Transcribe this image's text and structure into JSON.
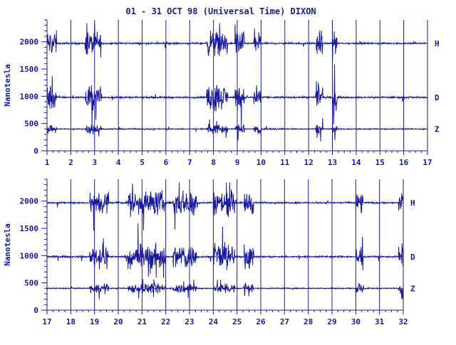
{
  "title": "01 - 31 OCT 98 (Universal Time) DIXON",
  "colors": {
    "ink": "#1a1aa0",
    "background": "#ffffff"
  },
  "chart_data": [
    {
      "type": "line",
      "ylabel": "Nanotesla",
      "x": {
        "range": [
          1,
          17
        ],
        "tick_labels": [
          "1",
          "2",
          "3",
          "4",
          "5",
          "6",
          "7",
          "8",
          "9",
          "10",
          "11",
          "12",
          "13",
          "14",
          "15",
          "16",
          "17"
        ]
      },
      "ylim": [
        0,
        2400
      ],
      "y_tick_labels": [
        "0",
        "500",
        "1000",
        "1500",
        "2000"
      ],
      "vertical_day_lines": true,
      "series": [
        {
          "name": "H",
          "baseline": 1970,
          "disturbed_days": [
            [
              1,
              1.4
            ],
            [
              2.6,
              3.3
            ],
            [
              7.7,
              8.6
            ],
            [
              8.9,
              9.3
            ],
            [
              9.7,
              10.0
            ],
            [
              12.3,
              12.6
            ],
            [
              13.0,
              13.2
            ]
          ]
        },
        {
          "name": "D",
          "baseline": 980,
          "disturbed_days": [
            [
              1,
              1.4
            ],
            [
              2.6,
              3.3
            ],
            [
              7.7,
              8.6
            ],
            [
              8.9,
              9.3
            ],
            [
              9.7,
              10.0
            ],
            [
              12.3,
              12.6
            ],
            [
              13.0,
              13.2
            ]
          ]
        },
        {
          "name": "Z",
          "baseline": 400,
          "disturbed_days": [
            [
              1,
              1.4
            ],
            [
              2.6,
              3.3
            ],
            [
              7.7,
              8.6
            ],
            [
              8.9,
              9.3
            ],
            [
              9.7,
              10.0
            ],
            [
              12.3,
              12.6
            ],
            [
              13.0,
              13.2
            ]
          ]
        }
      ]
    },
    {
      "type": "line",
      "ylabel": "Nanotesla",
      "x": {
        "range": [
          17,
          32
        ],
        "tick_labels": [
          "17",
          "18",
          "19",
          "20",
          "21",
          "22",
          "23",
          "24",
          "25",
          "26",
          "27",
          "28",
          "29",
          "30",
          "31",
          "32"
        ]
      },
      "ylim": [
        0,
        2400
      ],
      "y_tick_labels": [
        "0",
        "500",
        "1000",
        "1500",
        "2000"
      ],
      "vertical_day_lines": true,
      "series": [
        {
          "name": "H",
          "baseline": 1970,
          "disturbed_days": [
            [
              18.8,
              19.6
            ],
            [
              20.4,
              22.0
            ],
            [
              22.3,
              23.3
            ],
            [
              24.0,
              24.9
            ],
            [
              25.3,
              25.7
            ],
            [
              30.0,
              30.3
            ],
            [
              31.8,
              32.0
            ]
          ]
        },
        {
          "name": "D",
          "baseline": 980,
          "disturbed_days": [
            [
              18.8,
              19.6
            ],
            [
              20.4,
              22.0
            ],
            [
              22.3,
              23.3
            ],
            [
              24.0,
              24.9
            ],
            [
              25.3,
              25.7
            ],
            [
              30.0,
              30.3
            ],
            [
              31.8,
              32.0
            ]
          ]
        },
        {
          "name": "Z",
          "baseline": 400,
          "disturbed_days": [
            [
              18.8,
              19.6
            ],
            [
              20.4,
              22.0
            ],
            [
              22.3,
              23.3
            ],
            [
              24.0,
              24.9
            ],
            [
              25.3,
              25.7
            ],
            [
              30.0,
              30.3
            ],
            [
              31.8,
              32.0
            ]
          ]
        }
      ]
    }
  ]
}
